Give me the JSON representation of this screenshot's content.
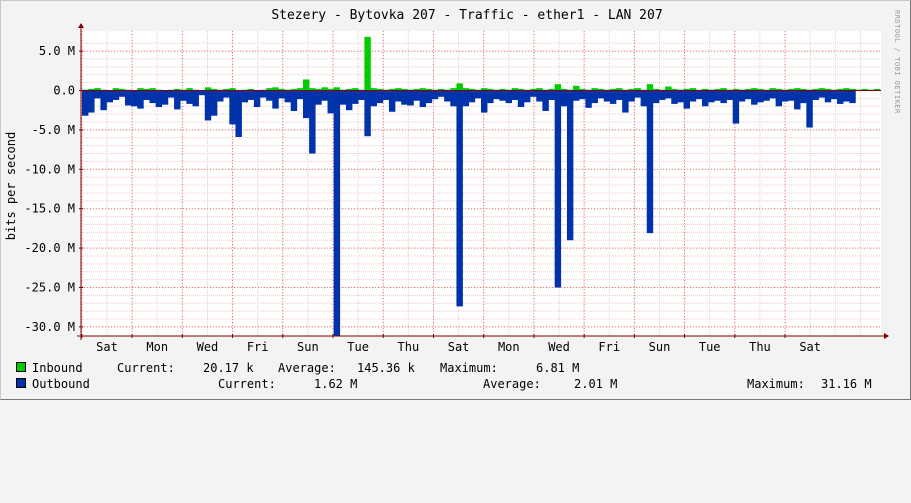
{
  "chart_data": {
    "type": "area",
    "title": "Stezery - Bytovka 207 - Traffic - ether1 - LAN 207",
    "ylabel": "bits per second",
    "vendor": "RRDTOOL / TOBI OETIKER",
    "ylim": [
      -31000000,
      7000000
    ],
    "y_ticks": [
      5000000,
      0,
      -5000000,
      -10000000,
      -15000000,
      -20000000,
      -25000000,
      -30000000
    ],
    "y_tick_labels": [
      "5.0 M",
      "0.0",
      "-5.0 M",
      "-10.0 M",
      "-15.0 M",
      "-20.0 M",
      "-25.0 M",
      "-30.0 M"
    ],
    "x_tick_labels": [
      "Sat",
      "Mon",
      "Wed",
      "Fri",
      "Sun",
      "Tue",
      "Thu",
      "Sat",
      "Mon",
      "Wed",
      "Fri",
      "Sun",
      "Tue",
      "Thu",
      "Sat"
    ],
    "grid": true,
    "colors": {
      "inbound": "#00cc00",
      "outbound": "#0033aa",
      "grid": "#e08080",
      "axis": "#800000"
    },
    "series": [
      {
        "name": "Inbound",
        "values": [
          0.1,
          0.2,
          0.3,
          0.1,
          0.05,
          0.3,
          0.2,
          0.1,
          0.05,
          0.3,
          0.2,
          0.3,
          0.1,
          0.05,
          0.1,
          0.2,
          0.1,
          0.3,
          0.1,
          0.05,
          0.4,
          0.2,
          0.1,
          0.2,
          0.3,
          0.05,
          0.1,
          0.2,
          0.05,
          0.1,
          0.3,
          0.4,
          0.2,
          0.1,
          0.2,
          0.3,
          1.4,
          0.3,
          0.2,
          0.4,
          0.2,
          0.4,
          0.1,
          0.2,
          0.3,
          0.1,
          6.81,
          0.3,
          0.2,
          0.1,
          0.2,
          0.3,
          0.2,
          0.1,
          0.2,
          0.3,
          0.2,
          0.1,
          0.2,
          0.1,
          0.3,
          0.9,
          0.3,
          0.2,
          0.1,
          0.3,
          0.2,
          0.1,
          0.2,
          0.1,
          0.3,
          0.2,
          0.1,
          0.2,
          0.3,
          0.1,
          0.2,
          0.8,
          0.2,
          0.1,
          0.6,
          0.2,
          0.1,
          0.3,
          0.2,
          0.1,
          0.2,
          0.3,
          0.1,
          0.2,
          0.3,
          0.1,
          0.8,
          0.2,
          0.1,
          0.5,
          0.2,
          0.1,
          0.2,
          0.3,
          0.1,
          0.2,
          0.1,
          0.2,
          0.3,
          0.1,
          0.2,
          0.1,
          0.2,
          0.3,
          0.2,
          0.1,
          0.3,
          0.2,
          0.1,
          0.2,
          0.3,
          0.2,
          0.1,
          0.2,
          0.3,
          0.2,
          0.1,
          0.2,
          0.3,
          0.2,
          0.1,
          0.2,
          0.1,
          0.2
        ],
        "unit": "M"
      },
      {
        "name": "Outbound",
        "values": [
          3.2,
          2.8,
          1.0,
          2.5,
          1.5,
          1.2,
          0.8,
          1.9,
          2.0,
          2.3,
          1.2,
          1.6,
          2.1,
          1.8,
          0.9,
          2.4,
          1.3,
          1.7,
          2.0,
          0.6,
          3.8,
          3.2,
          1.4,
          0.9,
          4.3,
          5.9,
          1.5,
          1.2,
          2.1,
          0.9,
          1.3,
          2.3,
          1.0,
          1.5,
          2.6,
          1.1,
          3.5,
          8.0,
          1.8,
          1.3,
          2.9,
          31.16,
          1.8,
          2.5,
          1.7,
          1.2,
          5.8,
          2.0,
          1.6,
          1.2,
          2.7,
          1.4,
          1.8,
          1.9,
          1.3,
          2.1,
          1.6,
          1.1,
          0.8,
          1.4,
          2.0,
          27.4,
          2.0,
          1.5,
          1.0,
          2.8,
          1.6,
          1.1,
          1.3,
          1.6,
          1.2,
          2.1,
          1.5,
          0.8,
          1.4,
          2.6,
          1.2,
          25.0,
          2.0,
          19.0,
          1.3,
          1.1,
          2.2,
          1.6,
          1.0,
          1.4,
          1.7,
          1.2,
          2.8,
          1.4,
          0.9,
          2.0,
          18.1,
          1.6,
          1.2,
          1.0,
          1.7,
          1.5,
          2.3,
          1.4,
          1.1,
          2.0,
          1.5,
          1.3,
          1.6,
          1.2,
          4.2,
          1.4,
          1.1,
          1.8,
          1.5,
          1.3,
          1.0,
          2.0,
          1.4,
          1.3,
          2.4,
          1.6,
          4.7,
          1.2,
          0.9,
          1.5,
          1.1,
          1.7,
          1.4,
          1.6
        ],
        "unit": "M"
      }
    ],
    "legend": [
      {
        "name": "Inbound",
        "current_label": "Current:",
        "current": "20.17 k",
        "average_label": "Average:",
        "average": "145.36 k",
        "maximum_label": "Maximum:",
        "maximum": "6.81 M"
      },
      {
        "name": "Outbound",
        "current_label": "Current:",
        "current": "1.62 M",
        "average_label": "Average:",
        "average": "2.01 M",
        "maximum_label": "Maximum:",
        "maximum": "31.16 M"
      }
    ]
  }
}
